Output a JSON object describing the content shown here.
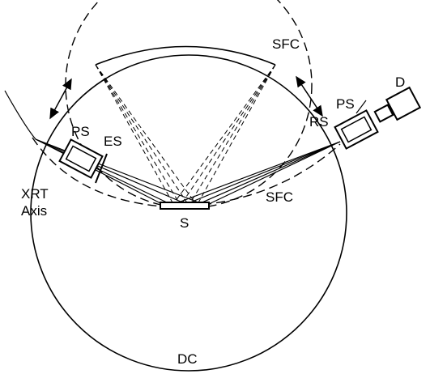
{
  "labels": {
    "sfc_top": "SFC",
    "sfc_right": "SFC",
    "d": "D",
    "ps_right": "PS",
    "rs": "RS",
    "ps_left": "PS",
    "es": "ES",
    "xrt": "XRT",
    "axis": "Axis",
    "s": "S",
    "dc": "DC"
  }
}
